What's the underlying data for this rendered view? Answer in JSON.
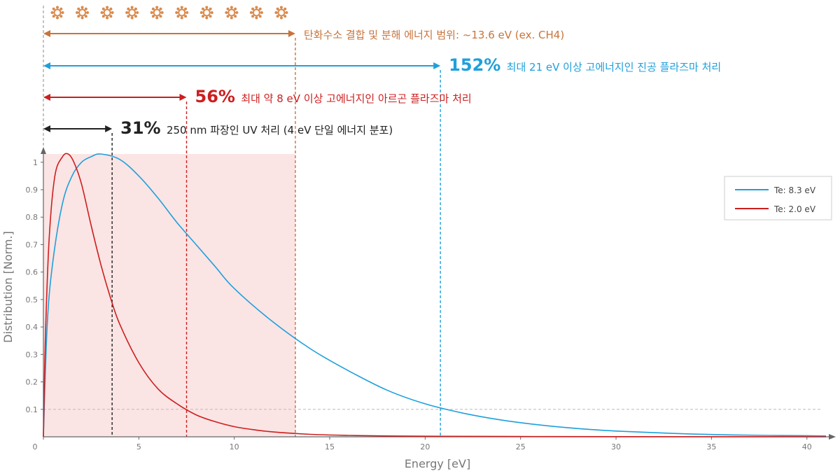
{
  "chart_data": {
    "type": "line",
    "xlabel": "Energy [eV]",
    "ylabel": "Distribution [Norm.]",
    "xlim": [
      0,
      41
    ],
    "ylim": [
      0,
      1.03
    ],
    "xticks": [
      "0",
      "5",
      "10",
      "15",
      "20",
      "25",
      "30",
      "35",
      "40"
    ],
    "yticks": [
      "0.1",
      "0.2",
      "0.3",
      "0.4",
      "0.5",
      "0.6",
      "0.7",
      "0.8",
      "0.9",
      "1"
    ],
    "grid": false,
    "reference_line": {
      "y": 0.1,
      "style": "dashed"
    },
    "shaded_region": {
      "x": [
        0,
        13.2
      ],
      "color": "#fbe4e4"
    },
    "legend": {
      "position": "top-right"
    },
    "series": [
      {
        "name": "Te: 8.3 eV",
        "color": "#1ea0dc",
        "x": [
          0,
          0.2,
          0.5,
          1,
          1.5,
          2,
          2.5,
          3,
          4,
          5,
          6,
          7,
          8,
          9,
          10,
          12,
          14,
          16,
          18,
          20,
          22,
          24,
          26,
          28,
          30,
          32,
          34,
          36,
          38,
          40,
          41
        ],
        "y": [
          0,
          0.41,
          0.64,
          0.85,
          0.95,
          1.0,
          1.02,
          1.03,
          1.01,
          0.95,
          0.87,
          0.78,
          0.7,
          0.62,
          0.54,
          0.42,
          0.32,
          0.24,
          0.17,
          0.12,
          0.086,
          0.061,
          0.043,
          0.03,
          0.021,
          0.015,
          0.01,
          0.007,
          0.005,
          0.004,
          0.003
        ]
      },
      {
        "name": "Te: 2.0 eV",
        "color": "#cc1f1f",
        "x": [
          0,
          0.1,
          0.3,
          0.6,
          1,
          1.3,
          1.6,
          2,
          2.5,
          3,
          3.5,
          4,
          5,
          6,
          7,
          8,
          9,
          10,
          11,
          12,
          14,
          16,
          18,
          20,
          25,
          30,
          41
        ],
        "y": [
          0,
          0.35,
          0.72,
          0.95,
          1.02,
          1.03,
          1.0,
          0.92,
          0.77,
          0.63,
          0.51,
          0.41,
          0.27,
          0.175,
          0.12,
          0.08,
          0.055,
          0.037,
          0.026,
          0.018,
          0.009,
          0.005,
          0.003,
          0.002,
          0.001,
          0.0005,
          0
        ]
      }
    ],
    "annotations": [
      {
        "id": "hc",
        "color": "#c8743a",
        "x_start": 0,
        "x_end": 13.2,
        "pct": "",
        "text": "탄화수소 결합 및 분해 에너지 범위: ~13.6 eV (ex. CH4)"
      },
      {
        "id": "a152",
        "color": "#1ea0dc",
        "x_start": 0,
        "x_end": 20.8,
        "pct": "152%",
        "text": "최대 21 eV 이상 고에너지인 진공 플라즈마 처리"
      },
      {
        "id": "a56",
        "color": "#cc1f1f",
        "x_start": 0,
        "x_end": 7.5,
        "pct": "56%",
        "text": "최대 약 8 eV 이상 고에너지인 아르곤 플라즈마 처리"
      },
      {
        "id": "a31",
        "color": "#222222",
        "x_start": 0,
        "x_end": 3.6,
        "pct": "31%",
        "text": "250 nm 파장인 UV 처리 (4 eV 단일 에너지 분포)"
      }
    ],
    "molecule_icon_count": 10,
    "molecule_icon_color": "#d98b4e"
  }
}
